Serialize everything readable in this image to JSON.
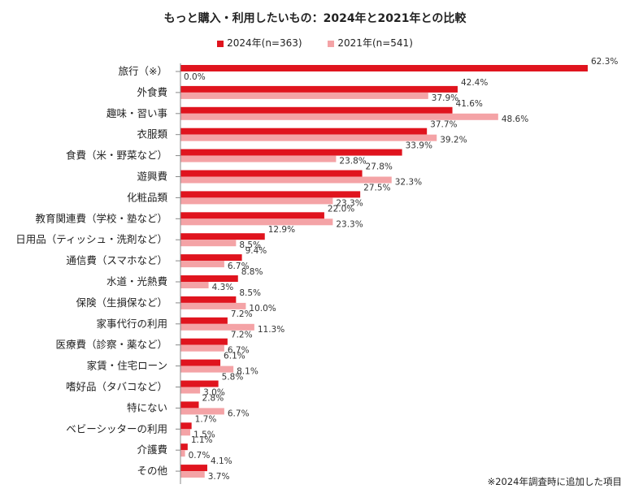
{
  "chart_data": {
    "type": "bar",
    "orientation": "horizontal",
    "title": "もっと購入・利用したいもの：2024年と2021年との比較",
    "legend_position": "top",
    "categories": [
      "旅行（※）",
      "外食費",
      "趣味・習い事",
      "衣服類",
      "食費（米・野菜など）",
      "遊興費",
      "化粧品類",
      "教育関連費（学校・塾など）",
      "日用品（ティッシュ・洗剤など）",
      "通信費（スマホなど）",
      "水道・光熱費",
      "保険（生損保など）",
      "家事代行の利用",
      "医療費（診察・薬など）",
      "家賃・住宅ローン",
      "嗜好品（タバコなど）",
      "特にない",
      "ベビーシッターの利用",
      "介護費",
      "その他"
    ],
    "series": [
      {
        "name": "2024年(n=363)",
        "color": "#e0141e",
        "values": [
          62.3,
          42.4,
          41.6,
          37.7,
          33.9,
          27.8,
          27.5,
          22.0,
          12.9,
          9.4,
          8.8,
          8.5,
          7.2,
          7.2,
          6.1,
          5.8,
          2.8,
          1.7,
          1.1,
          4.1
        ]
      },
      {
        "name": "2021年(n=541)",
        "color": "#f4a3a6",
        "values": [
          0.0,
          37.9,
          48.6,
          39.2,
          23.8,
          32.3,
          23.3,
          23.3,
          8.5,
          6.7,
          4.3,
          10.0,
          11.3,
          6.7,
          8.1,
          3.0,
          6.7,
          1.5,
          0.7,
          3.7
        ]
      }
    ],
    "xlim": [
      0,
      62.3
    ],
    "value_suffix": "%",
    "grid": false
  },
  "footnote": "※2024年調査時に追加した項目"
}
